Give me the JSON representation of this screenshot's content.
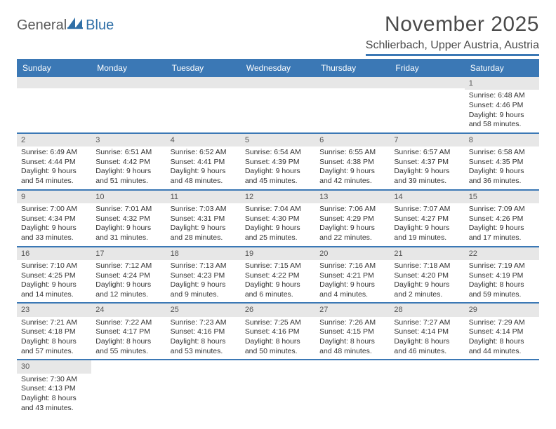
{
  "logo": {
    "text1": "General",
    "text2": "Blue"
  },
  "title": "November 2025",
  "location": "Schlierbach, Upper Austria, Austria",
  "header_bg": "#3b78b5",
  "day_headers": [
    "Sunday",
    "Monday",
    "Tuesday",
    "Wednesday",
    "Thursday",
    "Friday",
    "Saturday"
  ],
  "font_family": "Arial",
  "title_fontsize": 30,
  "location_fontsize": 16,
  "header_fontsize": 12,
  "cell_fontsize": 10.5,
  "colors": {
    "header_bg": "#3b78b5",
    "header_text": "#ffffff",
    "daynum_bg": "#e7e7e7",
    "border": "#3b78b5",
    "text": "#333333",
    "title_text": "#4a4a4a"
  },
  "weeks": [
    [
      {
        "day": "",
        "sunrise": "",
        "sunset": "",
        "daylight1": "",
        "daylight2": ""
      },
      {
        "day": "",
        "sunrise": "",
        "sunset": "",
        "daylight1": "",
        "daylight2": ""
      },
      {
        "day": "",
        "sunrise": "",
        "sunset": "",
        "daylight1": "",
        "daylight2": ""
      },
      {
        "day": "",
        "sunrise": "",
        "sunset": "",
        "daylight1": "",
        "daylight2": ""
      },
      {
        "day": "",
        "sunrise": "",
        "sunset": "",
        "daylight1": "",
        "daylight2": ""
      },
      {
        "day": "",
        "sunrise": "",
        "sunset": "",
        "daylight1": "",
        "daylight2": ""
      },
      {
        "day": "1",
        "sunrise": "Sunrise: 6:48 AM",
        "sunset": "Sunset: 4:46 PM",
        "daylight1": "Daylight: 9 hours",
        "daylight2": "and 58 minutes."
      }
    ],
    [
      {
        "day": "2",
        "sunrise": "Sunrise: 6:49 AM",
        "sunset": "Sunset: 4:44 PM",
        "daylight1": "Daylight: 9 hours",
        "daylight2": "and 54 minutes."
      },
      {
        "day": "3",
        "sunrise": "Sunrise: 6:51 AM",
        "sunset": "Sunset: 4:42 PM",
        "daylight1": "Daylight: 9 hours",
        "daylight2": "and 51 minutes."
      },
      {
        "day": "4",
        "sunrise": "Sunrise: 6:52 AM",
        "sunset": "Sunset: 4:41 PM",
        "daylight1": "Daylight: 9 hours",
        "daylight2": "and 48 minutes."
      },
      {
        "day": "5",
        "sunrise": "Sunrise: 6:54 AM",
        "sunset": "Sunset: 4:39 PM",
        "daylight1": "Daylight: 9 hours",
        "daylight2": "and 45 minutes."
      },
      {
        "day": "6",
        "sunrise": "Sunrise: 6:55 AM",
        "sunset": "Sunset: 4:38 PM",
        "daylight1": "Daylight: 9 hours",
        "daylight2": "and 42 minutes."
      },
      {
        "day": "7",
        "sunrise": "Sunrise: 6:57 AM",
        "sunset": "Sunset: 4:37 PM",
        "daylight1": "Daylight: 9 hours",
        "daylight2": "and 39 minutes."
      },
      {
        "day": "8",
        "sunrise": "Sunrise: 6:58 AM",
        "sunset": "Sunset: 4:35 PM",
        "daylight1": "Daylight: 9 hours",
        "daylight2": "and 36 minutes."
      }
    ],
    [
      {
        "day": "9",
        "sunrise": "Sunrise: 7:00 AM",
        "sunset": "Sunset: 4:34 PM",
        "daylight1": "Daylight: 9 hours",
        "daylight2": "and 33 minutes."
      },
      {
        "day": "10",
        "sunrise": "Sunrise: 7:01 AM",
        "sunset": "Sunset: 4:32 PM",
        "daylight1": "Daylight: 9 hours",
        "daylight2": "and 31 minutes."
      },
      {
        "day": "11",
        "sunrise": "Sunrise: 7:03 AM",
        "sunset": "Sunset: 4:31 PM",
        "daylight1": "Daylight: 9 hours",
        "daylight2": "and 28 minutes."
      },
      {
        "day": "12",
        "sunrise": "Sunrise: 7:04 AM",
        "sunset": "Sunset: 4:30 PM",
        "daylight1": "Daylight: 9 hours",
        "daylight2": "and 25 minutes."
      },
      {
        "day": "13",
        "sunrise": "Sunrise: 7:06 AM",
        "sunset": "Sunset: 4:29 PM",
        "daylight1": "Daylight: 9 hours",
        "daylight2": "and 22 minutes."
      },
      {
        "day": "14",
        "sunrise": "Sunrise: 7:07 AM",
        "sunset": "Sunset: 4:27 PM",
        "daylight1": "Daylight: 9 hours",
        "daylight2": "and 19 minutes."
      },
      {
        "day": "15",
        "sunrise": "Sunrise: 7:09 AM",
        "sunset": "Sunset: 4:26 PM",
        "daylight1": "Daylight: 9 hours",
        "daylight2": "and 17 minutes."
      }
    ],
    [
      {
        "day": "16",
        "sunrise": "Sunrise: 7:10 AM",
        "sunset": "Sunset: 4:25 PM",
        "daylight1": "Daylight: 9 hours",
        "daylight2": "and 14 minutes."
      },
      {
        "day": "17",
        "sunrise": "Sunrise: 7:12 AM",
        "sunset": "Sunset: 4:24 PM",
        "daylight1": "Daylight: 9 hours",
        "daylight2": "and 12 minutes."
      },
      {
        "day": "18",
        "sunrise": "Sunrise: 7:13 AM",
        "sunset": "Sunset: 4:23 PM",
        "daylight1": "Daylight: 9 hours",
        "daylight2": "and 9 minutes."
      },
      {
        "day": "19",
        "sunrise": "Sunrise: 7:15 AM",
        "sunset": "Sunset: 4:22 PM",
        "daylight1": "Daylight: 9 hours",
        "daylight2": "and 6 minutes."
      },
      {
        "day": "20",
        "sunrise": "Sunrise: 7:16 AM",
        "sunset": "Sunset: 4:21 PM",
        "daylight1": "Daylight: 9 hours",
        "daylight2": "and 4 minutes."
      },
      {
        "day": "21",
        "sunrise": "Sunrise: 7:18 AM",
        "sunset": "Sunset: 4:20 PM",
        "daylight1": "Daylight: 9 hours",
        "daylight2": "and 2 minutes."
      },
      {
        "day": "22",
        "sunrise": "Sunrise: 7:19 AM",
        "sunset": "Sunset: 4:19 PM",
        "daylight1": "Daylight: 8 hours",
        "daylight2": "and 59 minutes."
      }
    ],
    [
      {
        "day": "23",
        "sunrise": "Sunrise: 7:21 AM",
        "sunset": "Sunset: 4:18 PM",
        "daylight1": "Daylight: 8 hours",
        "daylight2": "and 57 minutes."
      },
      {
        "day": "24",
        "sunrise": "Sunrise: 7:22 AM",
        "sunset": "Sunset: 4:17 PM",
        "daylight1": "Daylight: 8 hours",
        "daylight2": "and 55 minutes."
      },
      {
        "day": "25",
        "sunrise": "Sunrise: 7:23 AM",
        "sunset": "Sunset: 4:16 PM",
        "daylight1": "Daylight: 8 hours",
        "daylight2": "and 53 minutes."
      },
      {
        "day": "26",
        "sunrise": "Sunrise: 7:25 AM",
        "sunset": "Sunset: 4:16 PM",
        "daylight1": "Daylight: 8 hours",
        "daylight2": "and 50 minutes."
      },
      {
        "day": "27",
        "sunrise": "Sunrise: 7:26 AM",
        "sunset": "Sunset: 4:15 PM",
        "daylight1": "Daylight: 8 hours",
        "daylight2": "and 48 minutes."
      },
      {
        "day": "28",
        "sunrise": "Sunrise: 7:27 AM",
        "sunset": "Sunset: 4:14 PM",
        "daylight1": "Daylight: 8 hours",
        "daylight2": "and 46 minutes."
      },
      {
        "day": "29",
        "sunrise": "Sunrise: 7:29 AM",
        "sunset": "Sunset: 4:14 PM",
        "daylight1": "Daylight: 8 hours",
        "daylight2": "and 44 minutes."
      }
    ],
    [
      {
        "day": "30",
        "sunrise": "Sunrise: 7:30 AM",
        "sunset": "Sunset: 4:13 PM",
        "daylight1": "Daylight: 8 hours",
        "daylight2": "and 43 minutes."
      },
      {
        "day": "",
        "sunrise": "",
        "sunset": "",
        "daylight1": "",
        "daylight2": ""
      },
      {
        "day": "",
        "sunrise": "",
        "sunset": "",
        "daylight1": "",
        "daylight2": ""
      },
      {
        "day": "",
        "sunrise": "",
        "sunset": "",
        "daylight1": "",
        "daylight2": ""
      },
      {
        "day": "",
        "sunrise": "",
        "sunset": "",
        "daylight1": "",
        "daylight2": ""
      },
      {
        "day": "",
        "sunrise": "",
        "sunset": "",
        "daylight1": "",
        "daylight2": ""
      },
      {
        "day": "",
        "sunrise": "",
        "sunset": "",
        "daylight1": "",
        "daylight2": ""
      }
    ]
  ]
}
